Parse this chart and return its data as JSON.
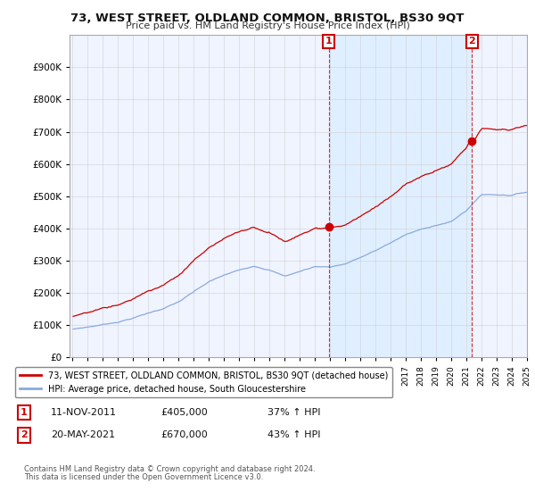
{
  "title": "73, WEST STREET, OLDLAND COMMON, BRISTOL, BS30 9QT",
  "subtitle": "Price paid vs. HM Land Registry's House Price Index (HPI)",
  "bg_color": "#ffffff",
  "plot_bg_color": "#f0f4ff",
  "shade_color": "#ddeeff",
  "grid_color": "#cccccc",
  "red_line_color": "#cc0000",
  "blue_line_color": "#88aadd",
  "sale1_date": "11-NOV-2011",
  "sale1_price": 405000,
  "sale1_year": 2011.917,
  "sale1_hpi_pct": "37% ↑ HPI",
  "sale1_label": "1",
  "sale2_date": "20-MAY-2021",
  "sale2_price": 670000,
  "sale2_year": 2021.375,
  "sale2_hpi_pct": "43% ↑ HPI",
  "sale2_label": "2",
  "legend_line1": "73, WEST STREET, OLDLAND COMMON, BRISTOL, BS30 9QT (detached house)",
  "legend_line2": "HPI: Average price, detached house, South Gloucestershire",
  "footer1": "Contains HM Land Registry data © Crown copyright and database right 2024.",
  "footer2": "This data is licensed under the Open Government Licence v3.0.",
  "ylim_max": 1000000,
  "ylim_min": 0,
  "xmin": 1995,
  "xmax": 2025
}
